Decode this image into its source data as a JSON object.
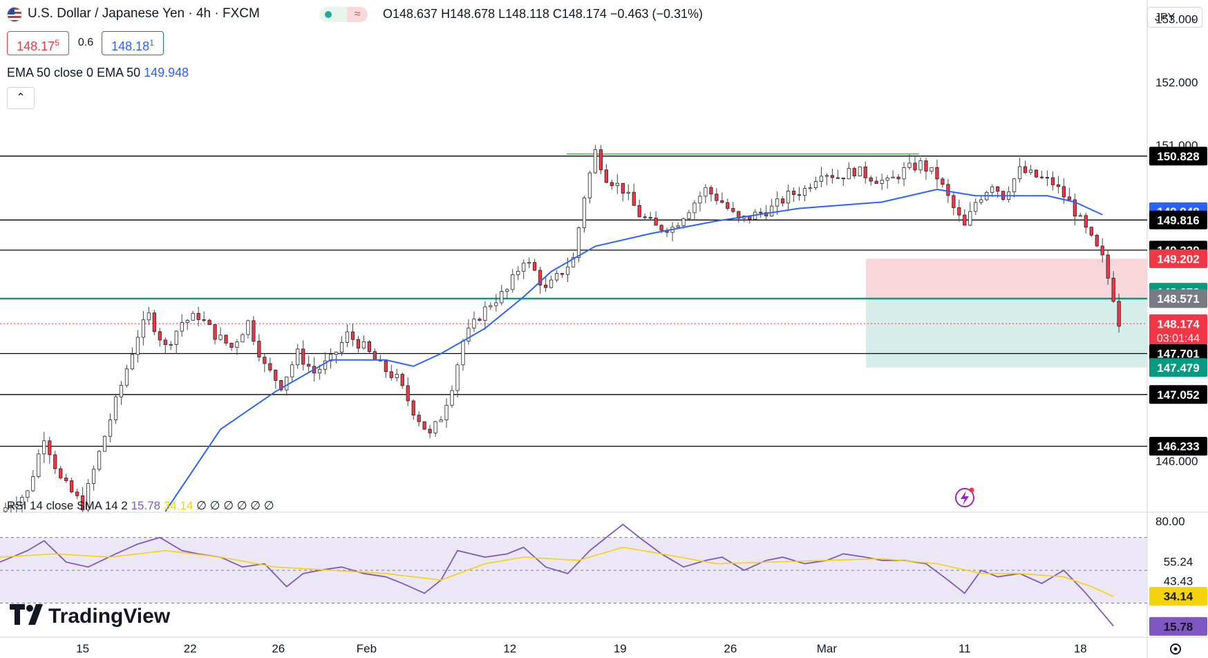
{
  "header": {
    "symbol": "U.S. Dollar / Japanese Yen · 4h · FXCM",
    "ohlc": "O148.637  H148.678  L148.118  C148.174  −0.463 (−0.31%)",
    "bid": "148.17",
    "bid_sup": "5",
    "spread": "0.6",
    "ask": "148.18",
    "ask_sup": "1",
    "ema_label": "EMA 50 close 0 EMA 50",
    "ema_value": "149.948",
    "currency": "JPY",
    "collapse_icon": "chevron-up-icon",
    "market_icon": "approx-icon"
  },
  "rsi_legend": {
    "label": "RSI 14 close SMA 14 2",
    "rsi": "15.78",
    "sma": "34.14",
    "extras": "∅ ∅ ∅ ∅ ∅ ∅"
  },
  "brand": {
    "name": "TradingView"
  },
  "colors": {
    "up": "#22ab94",
    "down": "#f23645",
    "ema": "#2962ff",
    "rsi": "#7e57c2",
    "rsi_sma": "#f5d30b",
    "green_level": "#089981",
    "stop_zone": "#f7d7da",
    "target_zone": "#d5eee9"
  },
  "chart_data": [
    {
      "type": "candlestick",
      "title": "U.S. Dollar / Japanese Yen · 4h · FXCM",
      "x_ticks": [
        "15",
        "22",
        "26",
        "Feb",
        "12",
        "19",
        "26",
        "Mar",
        "11",
        "18"
      ],
      "y_ticks": [
        "153.000",
        "152.000",
        "151.000",
        "146.000"
      ],
      "ylim": [
        145.2,
        153.3
      ],
      "horizontal_levels": [
        {
          "value": 150.828,
          "label": "150.828",
          "color": "#000000"
        },
        {
          "value": 149.816,
          "label": "149.816",
          "color": "#000000"
        },
        {
          "value": 149.339,
          "label": "149.339",
          "color": "#000000"
        },
        {
          "value": 148.571,
          "label": "148.571",
          "color": "#089981"
        },
        {
          "value": 147.701,
          "label": "147.701",
          "color": "#000000"
        },
        {
          "value": 147.052,
          "label": "147.052",
          "color": "#000000"
        },
        {
          "value": 146.233,
          "label": "146.233",
          "color": "#000000"
        }
      ],
      "price_labels": [
        {
          "value": 150.828,
          "label": "150.828",
          "color": "#000000"
        },
        {
          "value": 149.948,
          "label": "149.948",
          "color": "#2962ff"
        },
        {
          "value": 149.816,
          "label": "149.816",
          "color": "#000000"
        },
        {
          "value": 149.339,
          "label": "149.339",
          "color": "#000000"
        },
        {
          "value": 149.202,
          "label": "149.202",
          "color": "#f23645"
        },
        {
          "value": 148.673,
          "label": "148.673",
          "color": "#089981"
        },
        {
          "value": 148.571,
          "label": "148.571",
          "color": "#787b86"
        },
        {
          "value": 148.174,
          "label": "148.174",
          "sub": "03:01:44",
          "color": "#f23645"
        },
        {
          "value": 147.701,
          "label": "147.701",
          "color": "#000000"
        },
        {
          "value": 147.479,
          "label": "147.479",
          "color": "#089981"
        },
        {
          "value": 147.052,
          "label": "147.052",
          "color": "#000000"
        },
        {
          "value": 146.233,
          "label": "146.233",
          "color": "#000000"
        }
      ],
      "position_tool": {
        "entry": 148.571,
        "stop": 149.202,
        "target": 147.479
      },
      "last_price": 148.174,
      "close_path": [
        [
          0,
          145.2
        ],
        [
          10,
          145.5
        ],
        [
          16,
          146.4
        ],
        [
          22,
          145.7
        ],
        [
          30,
          145.3
        ],
        [
          38,
          146.4
        ],
        [
          44,
          147.2
        ],
        [
          50,
          148.0
        ],
        [
          54,
          148.3
        ],
        [
          60,
          147.8
        ],
        [
          66,
          148.2
        ],
        [
          72,
          148.3
        ],
        [
          78,
          148.0
        ],
        [
          84,
          147.8
        ],
        [
          90,
          148.2
        ],
        [
          96,
          147.5
        ],
        [
          102,
          147.2
        ],
        [
          108,
          147.7
        ],
        [
          114,
          147.4
        ],
        [
          120,
          147.6
        ],
        [
          126,
          148.0
        ],
        [
          132,
          147.8
        ],
        [
          138,
          147.5
        ],
        [
          144,
          147.3
        ],
        [
          150,
          146.8
        ],
        [
          156,
          146.4
        ],
        [
          160,
          146.7
        ],
        [
          164,
          147.2
        ],
        [
          168,
          147.9
        ],
        [
          174,
          148.3
        ],
        [
          178,
          148.5
        ],
        [
          184,
          148.7
        ],
        [
          190,
          149.2
        ],
        [
          194,
          149.0
        ],
        [
          198,
          148.7
        ],
        [
          204,
          149.0
        ],
        [
          208,
          149.2
        ],
        [
          212,
          150.2
        ],
        [
          216,
          150.9
        ],
        [
          220,
          150.5
        ],
        [
          226,
          150.3
        ],
        [
          232,
          149.9
        ],
        [
          238,
          149.7
        ],
        [
          244,
          149.7
        ],
        [
          250,
          150.0
        ],
        [
          256,
          150.3
        ],
        [
          262,
          150.1
        ],
        [
          268,
          149.8
        ],
        [
          274,
          149.9
        ],
        [
          280,
          150.0
        ],
        [
          286,
          150.2
        ],
        [
          292,
          150.3
        ],
        [
          298,
          150.6
        ],
        [
          304,
          150.5
        ],
        [
          310,
          150.6
        ],
        [
          316,
          150.5
        ],
        [
          322,
          150.4
        ],
        [
          328,
          150.6
        ],
        [
          334,
          150.7
        ],
        [
          340,
          150.5
        ],
        [
          346,
          150.0
        ],
        [
          350,
          149.7
        ],
        [
          354,
          150.1
        ],
        [
          360,
          150.4
        ],
        [
          364,
          150.2
        ],
        [
          370,
          150.6
        ],
        [
          376,
          150.5
        ],
        [
          382,
          150.4
        ],
        [
          388,
          150.1
        ],
        [
          392,
          149.8
        ],
        [
          396,
          149.5
        ],
        [
          400,
          149.2
        ],
        [
          404,
          148.6
        ],
        [
          406,
          148.2
        ]
      ],
      "ema50_path": [
        [
          60,
          145.2
        ],
        [
          80,
          146.5
        ],
        [
          100,
          147.1
        ],
        [
          120,
          147.6
        ],
        [
          140,
          147.6
        ],
        [
          150,
          147.5
        ],
        [
          160,
          147.7
        ],
        [
          176,
          148.1
        ],
        [
          190,
          148.6
        ],
        [
          200,
          149.0
        ],
        [
          216,
          149.4
        ],
        [
          236,
          149.6
        ],
        [
          260,
          149.8
        ],
        [
          290,
          150.0
        ],
        [
          320,
          150.1
        ],
        [
          340,
          150.3
        ],
        [
          354,
          150.2
        ],
        [
          370,
          150.2
        ],
        [
          380,
          150.2
        ],
        [
          390,
          150.1
        ],
        [
          400,
          149.9
        ]
      ]
    },
    {
      "type": "line",
      "title": "RSI 14 close SMA 14 2",
      "y_ticks": [
        "80.00",
        "55.24",
        "43.43"
      ],
      "ylim": [
        10,
        85
      ],
      "bands": [
        70,
        50,
        30
      ],
      "price_labels": [
        {
          "value": 55.24,
          "label": "55.24",
          "color": "#ffffff"
        },
        {
          "value": 43.43,
          "label": "43.43",
          "color": "#ffffff"
        },
        {
          "value": 34.14,
          "label": "34.14",
          "color": "#f5d30b"
        },
        {
          "value": 15.78,
          "label": "15.78",
          "color": "#7e57c2"
        }
      ],
      "series": [
        {
          "name": "RSI",
          "color": "#7e57c2",
          "values": [
            [
              0,
              55
            ],
            [
              10,
              62
            ],
            [
              16,
              68
            ],
            [
              24,
              55
            ],
            [
              32,
              52
            ],
            [
              42,
              60
            ],
            [
              50,
              66
            ],
            [
              58,
              70
            ],
            [
              66,
              62
            ],
            [
              72,
              60
            ],
            [
              80,
              58
            ],
            [
              88,
              52
            ],
            [
              96,
              54
            ],
            [
              104,
              40
            ],
            [
              110,
              48
            ],
            [
              116,
              50
            ],
            [
              124,
              52
            ],
            [
              132,
              48
            ],
            [
              140,
              46
            ],
            [
              146,
              42
            ],
            [
              154,
              36
            ],
            [
              160,
              44
            ],
            [
              166,
              62
            ],
            [
              176,
              58
            ],
            [
              184,
              60
            ],
            [
              190,
              64
            ],
            [
              198,
              52
            ],
            [
              206,
              48
            ],
            [
              214,
              62
            ],
            [
              220,
              70
            ],
            [
              226,
              78
            ],
            [
              232,
              70
            ],
            [
              240,
              60
            ],
            [
              248,
              52
            ],
            [
              256,
              56
            ],
            [
              262,
              58
            ],
            [
              270,
              50
            ],
            [
              278,
              56
            ],
            [
              284,
              58
            ],
            [
              292,
              54
            ],
            [
              300,
              56
            ],
            [
              306,
              60
            ],
            [
              314,
              58
            ],
            [
              320,
              56
            ],
            [
              328,
              56
            ],
            [
              336,
              54
            ],
            [
              344,
              44
            ],
            [
              350,
              36
            ],
            [
              356,
              50
            ],
            [
              362,
              46
            ],
            [
              370,
              48
            ],
            [
              378,
              42
            ],
            [
              386,
              50
            ],
            [
              394,
              36
            ],
            [
              400,
              24
            ],
            [
              404,
              16
            ]
          ]
        },
        {
          "name": "SMA",
          "color": "#f5d30b",
          "values": [
            [
              0,
              58
            ],
            [
              20,
              60
            ],
            [
              40,
              58
            ],
            [
              60,
              62
            ],
            [
              80,
              58
            ],
            [
              100,
              52
            ],
            [
              120,
              50
            ],
            [
              140,
              48
            ],
            [
              160,
              44
            ],
            [
              176,
              54
            ],
            [
              190,
              58
            ],
            [
              210,
              56
            ],
            [
              226,
              64
            ],
            [
              240,
              60
            ],
            [
              260,
              54
            ],
            [
              280,
              55
            ],
            [
              300,
              56
            ],
            [
              320,
              57
            ],
            [
              340,
              54
            ],
            [
              356,
              48
            ],
            [
              370,
              48
            ],
            [
              386,
              46
            ],
            [
              396,
              40
            ],
            [
              404,
              34
            ]
          ]
        }
      ]
    }
  ]
}
